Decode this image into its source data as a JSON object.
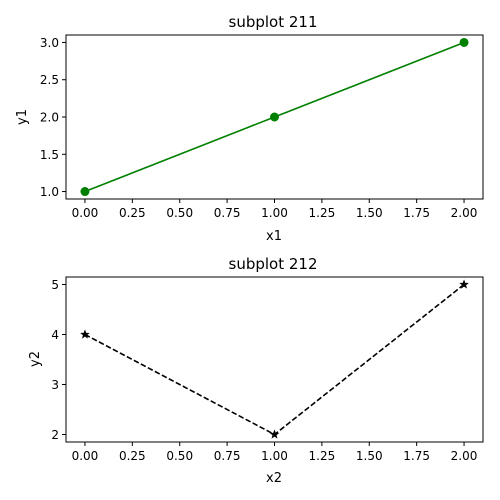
{
  "chart_data": [
    {
      "type": "line",
      "title": "subplot 211",
      "xlabel": "x1",
      "ylabel": "y1",
      "x": [
        0,
        1,
        2
      ],
      "series": [
        {
          "values": [
            1,
            2,
            3
          ],
          "color": "#008000",
          "line_style": "solid",
          "marker": "circle"
        }
      ],
      "xlim": [
        -0.1,
        2.1
      ],
      "ylim": [
        0.9,
        3.1
      ],
      "xticks": [
        0,
        0.25,
        0.5,
        0.75,
        1,
        1.25,
        1.5,
        1.75,
        2
      ],
      "xtick_labels": [
        "0.00",
        "0.25",
        "0.50",
        "0.75",
        "1.00",
        "1.25",
        "1.50",
        "1.75",
        "2.00"
      ],
      "yticks": [
        1,
        1.5,
        2,
        2.5,
        3
      ],
      "ytick_labels": [
        "1.0",
        "1.5",
        "2.0",
        "2.5",
        "3.0"
      ],
      "grid": false
    },
    {
      "type": "line",
      "title": "subplot 212",
      "xlabel": "x2",
      "ylabel": "y2",
      "x": [
        0,
        1,
        2
      ],
      "series": [
        {
          "values": [
            4,
            2,
            5
          ],
          "color": "#000000",
          "line_style": "dashed",
          "marker": "star"
        }
      ],
      "xlim": [
        -0.1,
        2.1
      ],
      "ylim": [
        1.85,
        5.15
      ],
      "xticks": [
        0,
        0.25,
        0.5,
        0.75,
        1,
        1.25,
        1.5,
        1.75,
        2
      ],
      "xtick_labels": [
        "0.00",
        "0.25",
        "0.50",
        "0.75",
        "1.00",
        "1.25",
        "1.50",
        "1.75",
        "2.00"
      ],
      "yticks": [
        2,
        3,
        4,
        5
      ],
      "ytick_labels": [
        "2",
        "3",
        "4",
        "5"
      ],
      "grid": false
    }
  ]
}
